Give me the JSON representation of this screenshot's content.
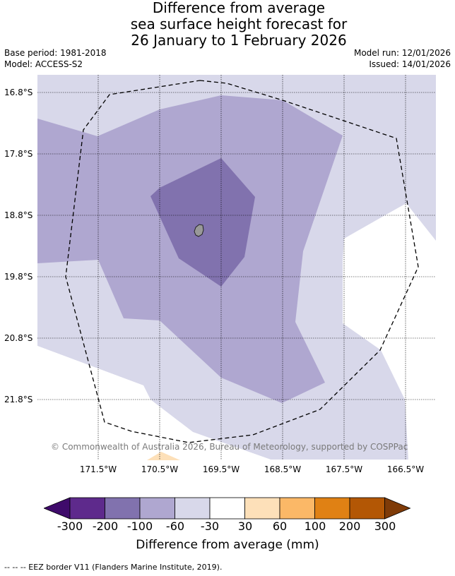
{
  "title": {
    "line1": "Difference from average",
    "line2": "sea surface height forecast for",
    "line3": "26 January to 1 February 2026"
  },
  "meta": {
    "base_period": "Base period: 1981-2018",
    "model": "Model: ACCESS-S2",
    "model_run": "Model run: 12/01/2026",
    "issued": "Issued: 14/01/2026"
  },
  "map": {
    "lat_labels": [
      "16.8°S",
      "17.8°S",
      "18.8°S",
      "19.8°S",
      "20.8°S",
      "21.8°S"
    ],
    "lon_labels": [
      "171.5°W",
      "170.5°W",
      "169.5°W",
      "168.5°W",
      "167.5°W",
      "166.5°W"
    ],
    "copyright": "© Commonwealth of Australia 2026, Bureau of Meteorology, supported by COSPPac",
    "colors": {
      "neg_30_60": "#d8d8ea",
      "neg_60_100": "#afa7d0",
      "neg_100_200": "#8172ae",
      "land": "#999999",
      "pos_30_60": "#fde0b9"
    }
  },
  "colorbar": {
    "ticks": [
      "-300",
      "-200",
      "-100",
      "-60",
      "-30",
      "30",
      "60",
      "100",
      "200",
      "300"
    ],
    "colors": [
      "#3f0b6b",
      "#5e2a8c",
      "#8172ae",
      "#afa7d0",
      "#d8d8ea",
      "#ffffff",
      "#fde0b9",
      "#fbb867",
      "#e08114",
      "#b35705",
      "#7f3b08"
    ],
    "label": "Difference from average (mm)"
  },
  "footer": "--  --  -- EEZ border V11 (Flanders Marine Institute, 2019)."
}
